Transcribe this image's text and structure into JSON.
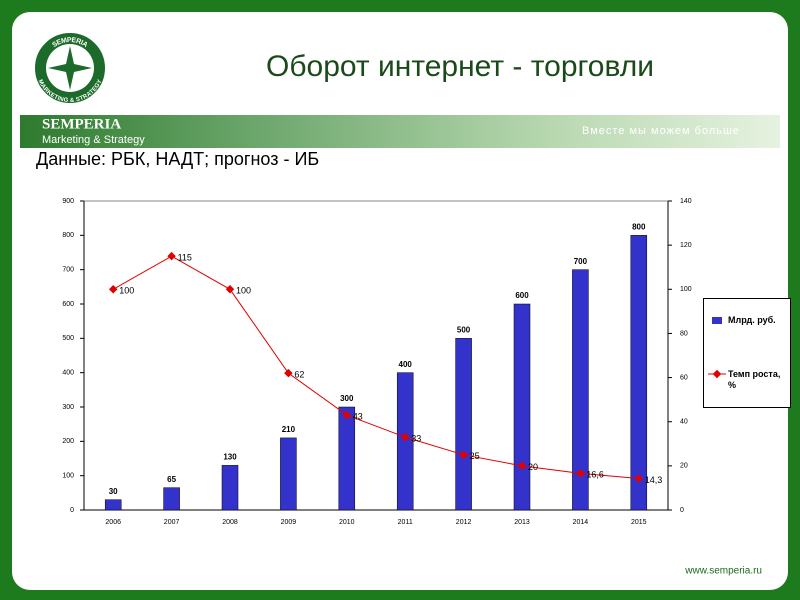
{
  "slide": {
    "title": "Оборот интернет - торговли",
    "logo_name": "SEMPERIA",
    "logo_tagline": "Marketing & Strategy",
    "ring_top": "SEMPERIA",
    "ring_bottom": "MARKETING & STRATEGY",
    "slogan": "Вместе мы можем больше",
    "footer": "www.semperia.ru"
  },
  "chart_data": {
    "type": "bar",
    "subtitle": "Данные: РБК, НАДТ; прогноз - ИБ",
    "categories": [
      "2006",
      "2007",
      "2008",
      "2009",
      "2010",
      "2011",
      "2012",
      "2013",
      "2014",
      "2015"
    ],
    "series": [
      {
        "name": "Млрд. руб.",
        "type": "bar",
        "color": "#3333cc",
        "values": [
          30,
          65,
          130,
          210,
          300,
          400,
          500,
          600,
          700,
          800
        ]
      },
      {
        "name": "Темп роста, %",
        "type": "line",
        "axis": "y2",
        "color": "#e00000",
        "values": [
          100,
          115,
          100,
          62,
          43,
          33,
          25,
          20,
          16.6,
          14.3
        ],
        "value_labels": [
          "100",
          "115",
          "100",
          "62",
          "43",
          "33",
          "25",
          "20",
          "16,6",
          "14,3"
        ]
      }
    ],
    "ylim": [
      0,
      900
    ],
    "yticks": [
      0,
      100,
      200,
      300,
      400,
      500,
      600,
      700,
      800,
      900
    ],
    "y2lim": [
      0,
      140
    ],
    "y2ticks": [
      0,
      20,
      40,
      60,
      80,
      100,
      120,
      140
    ],
    "legend": "right"
  }
}
